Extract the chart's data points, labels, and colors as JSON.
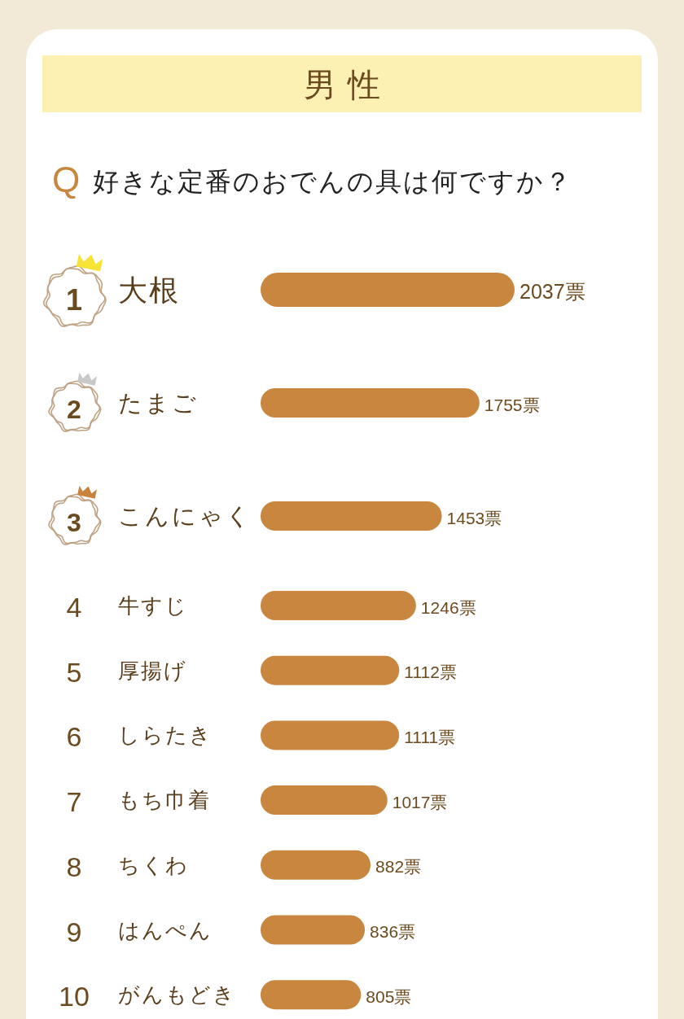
{
  "chart_data": {
    "type": "bar",
    "orientation": "horizontal",
    "title": "男性",
    "subtitle": "Q 好きな定番のおでんの具は何ですか？",
    "categories": [
      "大根",
      "たまご",
      "こんにゃく",
      "牛すじ",
      "厚揚げ",
      "しらたき",
      "もち巾着",
      "ちくわ",
      "はんぺん",
      "がんもどき"
    ],
    "values": [
      2037,
      1755,
      1453,
      1246,
      1112,
      1111,
      1017,
      882,
      836,
      805
    ],
    "value_labels": [
      "2037票",
      "1755票",
      "1453票",
      "1246票",
      "1112票",
      "1111票",
      "1017票",
      "882票",
      "836票",
      "805票"
    ],
    "color": "#c8863f",
    "annotations": [
      "1",
      "2",
      "3",
      "4",
      "5",
      "6",
      "7",
      "8",
      "9",
      "10"
    ]
  }
}
